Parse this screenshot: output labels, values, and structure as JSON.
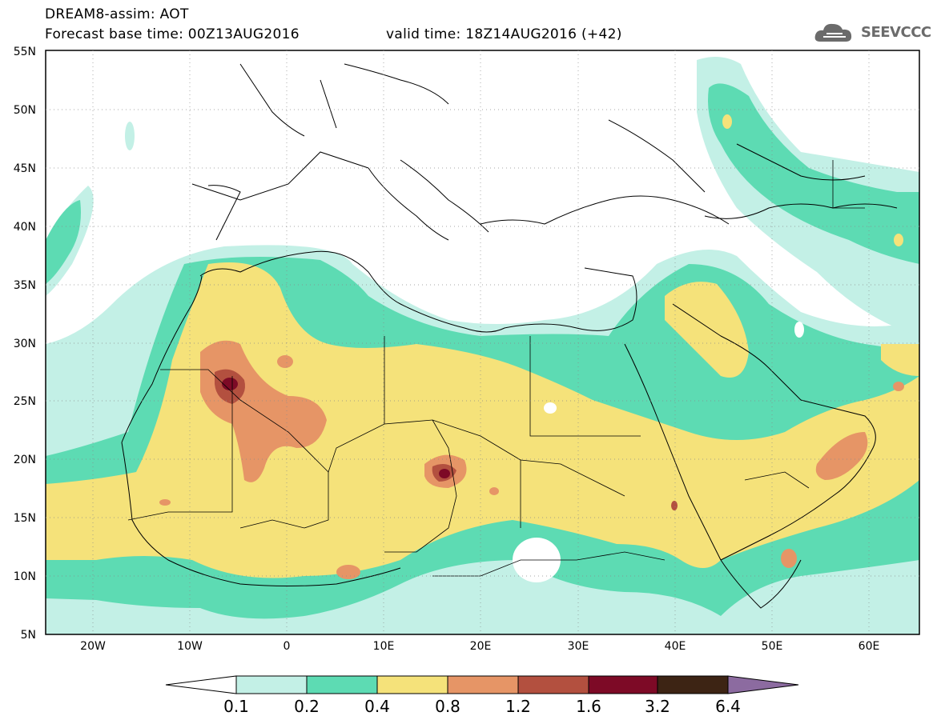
{
  "header": {
    "title": "DREAM8-assim: AOT",
    "base_time": "Forecast base time: 00Z13AUG2016",
    "valid_time": "valid time: 18Z14AUG2016 (+42)",
    "logo_text": "SEEVCCC"
  },
  "map": {
    "lat_labels": [
      "55N",
      "50N",
      "45N",
      "40N",
      "35N",
      "30N",
      "25N",
      "20N",
      "15N",
      "10N",
      "5N"
    ],
    "lon_labels": [
      "20W",
      "10W",
      "0",
      "10E",
      "20E",
      "30E",
      "40E",
      "50E",
      "60E"
    ],
    "extent": {
      "lon": [
        -25,
        65
      ],
      "lat": [
        5,
        55
      ]
    }
  },
  "colorbar": {
    "levels": [
      "0.1",
      "0.2",
      "0.4",
      "0.8",
      "1.2",
      "1.6",
      "3.2",
      "6.4"
    ],
    "colors": [
      "#ffffff",
      "#c3f0e6",
      "#5ddbb3",
      "#f5e27a",
      "#e69566",
      "#b3503f",
      "#7d0a26",
      "#3d2414",
      "#8c6ba0"
    ]
  },
  "fill_colors": {
    "c1": "#c3f0e6",
    "c2": "#5ddbb3",
    "c3": "#f5e27a",
    "c4": "#e69566",
    "c5": "#b3503f",
    "c6": "#7d0a26"
  }
}
